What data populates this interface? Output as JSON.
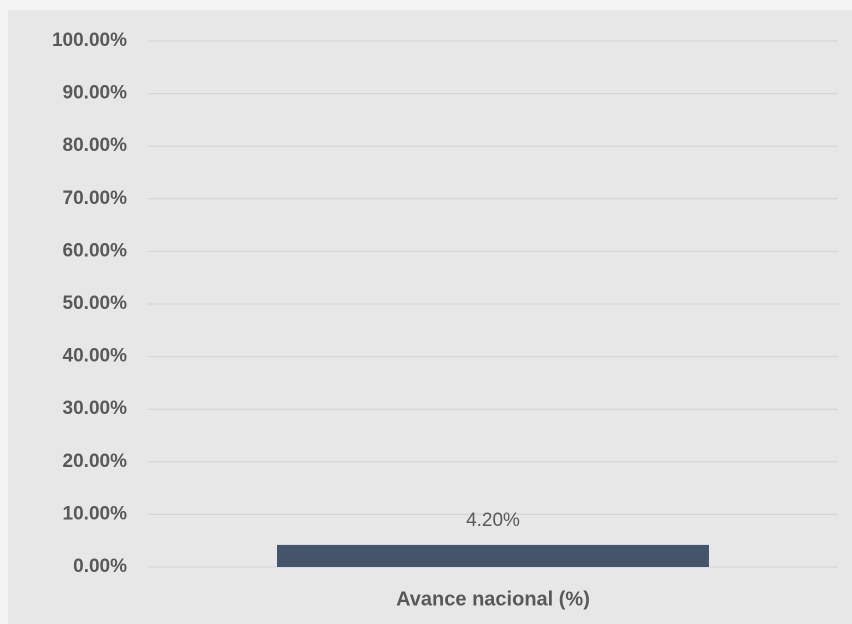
{
  "chart_data": {
    "type": "bar",
    "categories": [
      "Avance nacional (%)"
    ],
    "values": [
      4.2
    ],
    "value_labels": [
      "4.20%"
    ],
    "color": "#44546a",
    "ylim": [
      0,
      100
    ],
    "yticks": [
      {
        "value": 0,
        "label": "0.00%"
      },
      {
        "value": 10,
        "label": "10.00%"
      },
      {
        "value": 20,
        "label": "20.00%"
      },
      {
        "value": 30,
        "label": "30.00%"
      },
      {
        "value": 40,
        "label": "40.00%"
      },
      {
        "value": 50,
        "label": "50.00%"
      },
      {
        "value": 60,
        "label": "60.00%"
      },
      {
        "value": 70,
        "label": "70.00%"
      },
      {
        "value": 80,
        "label": "80.00%"
      },
      {
        "value": 90,
        "label": "90.00%"
      },
      {
        "value": 100,
        "label": "100.00%"
      }
    ],
    "grid": true
  }
}
